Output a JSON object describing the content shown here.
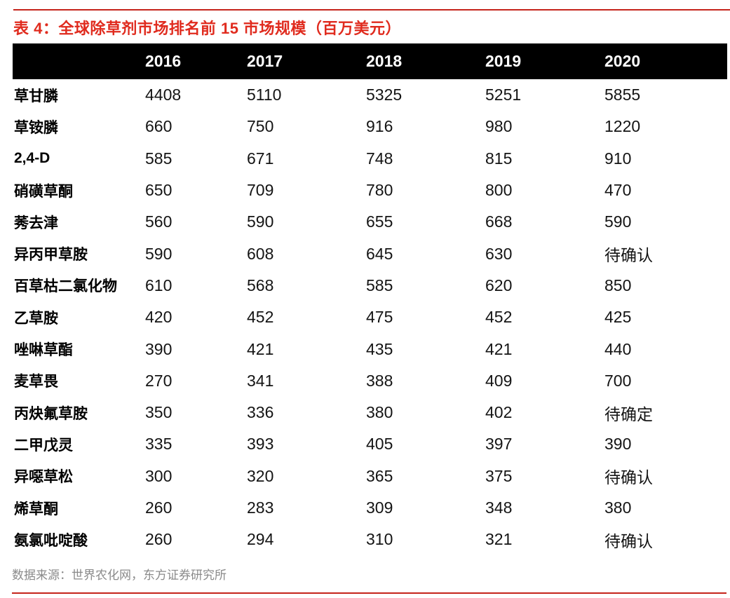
{
  "title": "表 4：全球除草剂市场排名前 15 市场规模（百万美元）",
  "table": {
    "columns": [
      "",
      "2016",
      "2017",
      "2018",
      "2019",
      "2020"
    ],
    "rows": [
      {
        "name": "草甘膦",
        "values": [
          "4408",
          "5110",
          "5325",
          "5251",
          "5855"
        ]
      },
      {
        "name": "草铵膦",
        "values": [
          "660",
          "750",
          "916",
          "980",
          "1220"
        ]
      },
      {
        "name": "2,4-D",
        "values": [
          "585",
          "671",
          "748",
          "815",
          "910"
        ]
      },
      {
        "name": "硝磺草酮",
        "values": [
          "650",
          "709",
          "780",
          "800",
          "470"
        ]
      },
      {
        "name": "莠去津",
        "values": [
          "560",
          "590",
          "655",
          "668",
          "590"
        ]
      },
      {
        "name": "异丙甲草胺",
        "values": [
          "590",
          "608",
          "645",
          "630",
          "待确认"
        ]
      },
      {
        "name": "百草枯二氯化物",
        "values": [
          "610",
          "568",
          "585",
          "620",
          "850"
        ]
      },
      {
        "name": "乙草胺",
        "values": [
          "420",
          "452",
          "475",
          "452",
          "425"
        ]
      },
      {
        "name": "唑啉草酯",
        "values": [
          "390",
          "421",
          "435",
          "421",
          "440"
        ]
      },
      {
        "name": "麦草畏",
        "values": [
          "270",
          "341",
          "388",
          "409",
          "700"
        ]
      },
      {
        "name": "丙炔氟草胺",
        "values": [
          "350",
          "336",
          "380",
          "402",
          "待确定"
        ]
      },
      {
        "name": "二甲戊灵",
        "values": [
          "335",
          "393",
          "405",
          "397",
          "390"
        ]
      },
      {
        "name": "异噁草松",
        "values": [
          "300",
          "320",
          "365",
          "375",
          "待确认"
        ]
      },
      {
        "name": "烯草酮",
        "values": [
          "260",
          "283",
          "309",
          "348",
          "380"
        ]
      },
      {
        "name": "氨氯吡啶酸",
        "values": [
          "260",
          "294",
          "310",
          "321",
          "待确认"
        ]
      }
    ]
  },
  "footer": {
    "source": "数据来源：世界农化网，东方证券研究所"
  },
  "colors": {
    "accent_red": "#C5241B",
    "title_red": "#E02B1E",
    "header_bg": "#000000",
    "header_text": "#FFFFFF",
    "body_text": "#141414",
    "source_gray": "#8A8A8A"
  }
}
